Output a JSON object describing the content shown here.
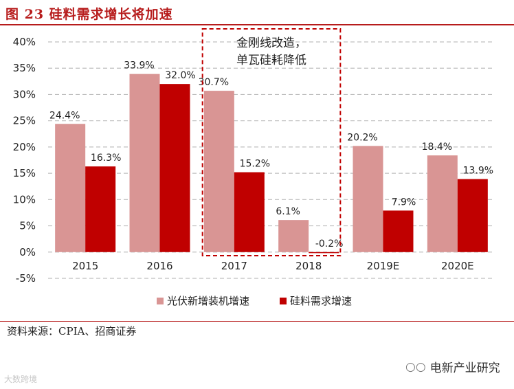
{
  "figure_title": "图 23  硅料需求增长将加速",
  "source": "资料来源：CPIA、招商证券",
  "watermark_right": "电新产业研究",
  "watermark_left": "大数跨境",
  "colors": {
    "series1": "#d99594",
    "series2": "#c00000",
    "accent": "#b71c1c",
    "grid": "#bfbfbf"
  },
  "chart_data": {
    "type": "bar",
    "categories": [
      "2015",
      "2016",
      "2017",
      "2018",
      "2019E",
      "2020E"
    ],
    "series": [
      {
        "name": "光伏新增装机增速",
        "values": [
          24.4,
          33.9,
          30.7,
          6.1,
          20.2,
          18.4
        ],
        "labels": [
          "24.4%",
          "33.9%",
          "30.7%",
          "6.1%",
          "20.2%",
          "18.4%"
        ]
      },
      {
        "name": "硅料需求增速",
        "values": [
          16.3,
          32.0,
          15.2,
          -0.2,
          7.9,
          13.9
        ],
        "labels": [
          "16.3%",
          "32.0%",
          "15.2%",
          "-0.2%",
          "7.9%",
          "13.9%"
        ]
      }
    ],
    "ylim": [
      -5,
      40
    ],
    "yticks": [
      -5,
      0,
      5,
      10,
      15,
      20,
      25,
      30,
      35,
      40
    ],
    "ytick_labels": [
      "-5%",
      "0%",
      "5%",
      "10%",
      "15%",
      "20%",
      "25%",
      "30%",
      "35%",
      "40%"
    ],
    "grid": true,
    "legend_position": "bottom",
    "annotation": {
      "lines": [
        "金刚线改造，",
        "单瓦硅耗降低"
      ],
      "highlight_categories": [
        "2017",
        "2018"
      ]
    }
  }
}
